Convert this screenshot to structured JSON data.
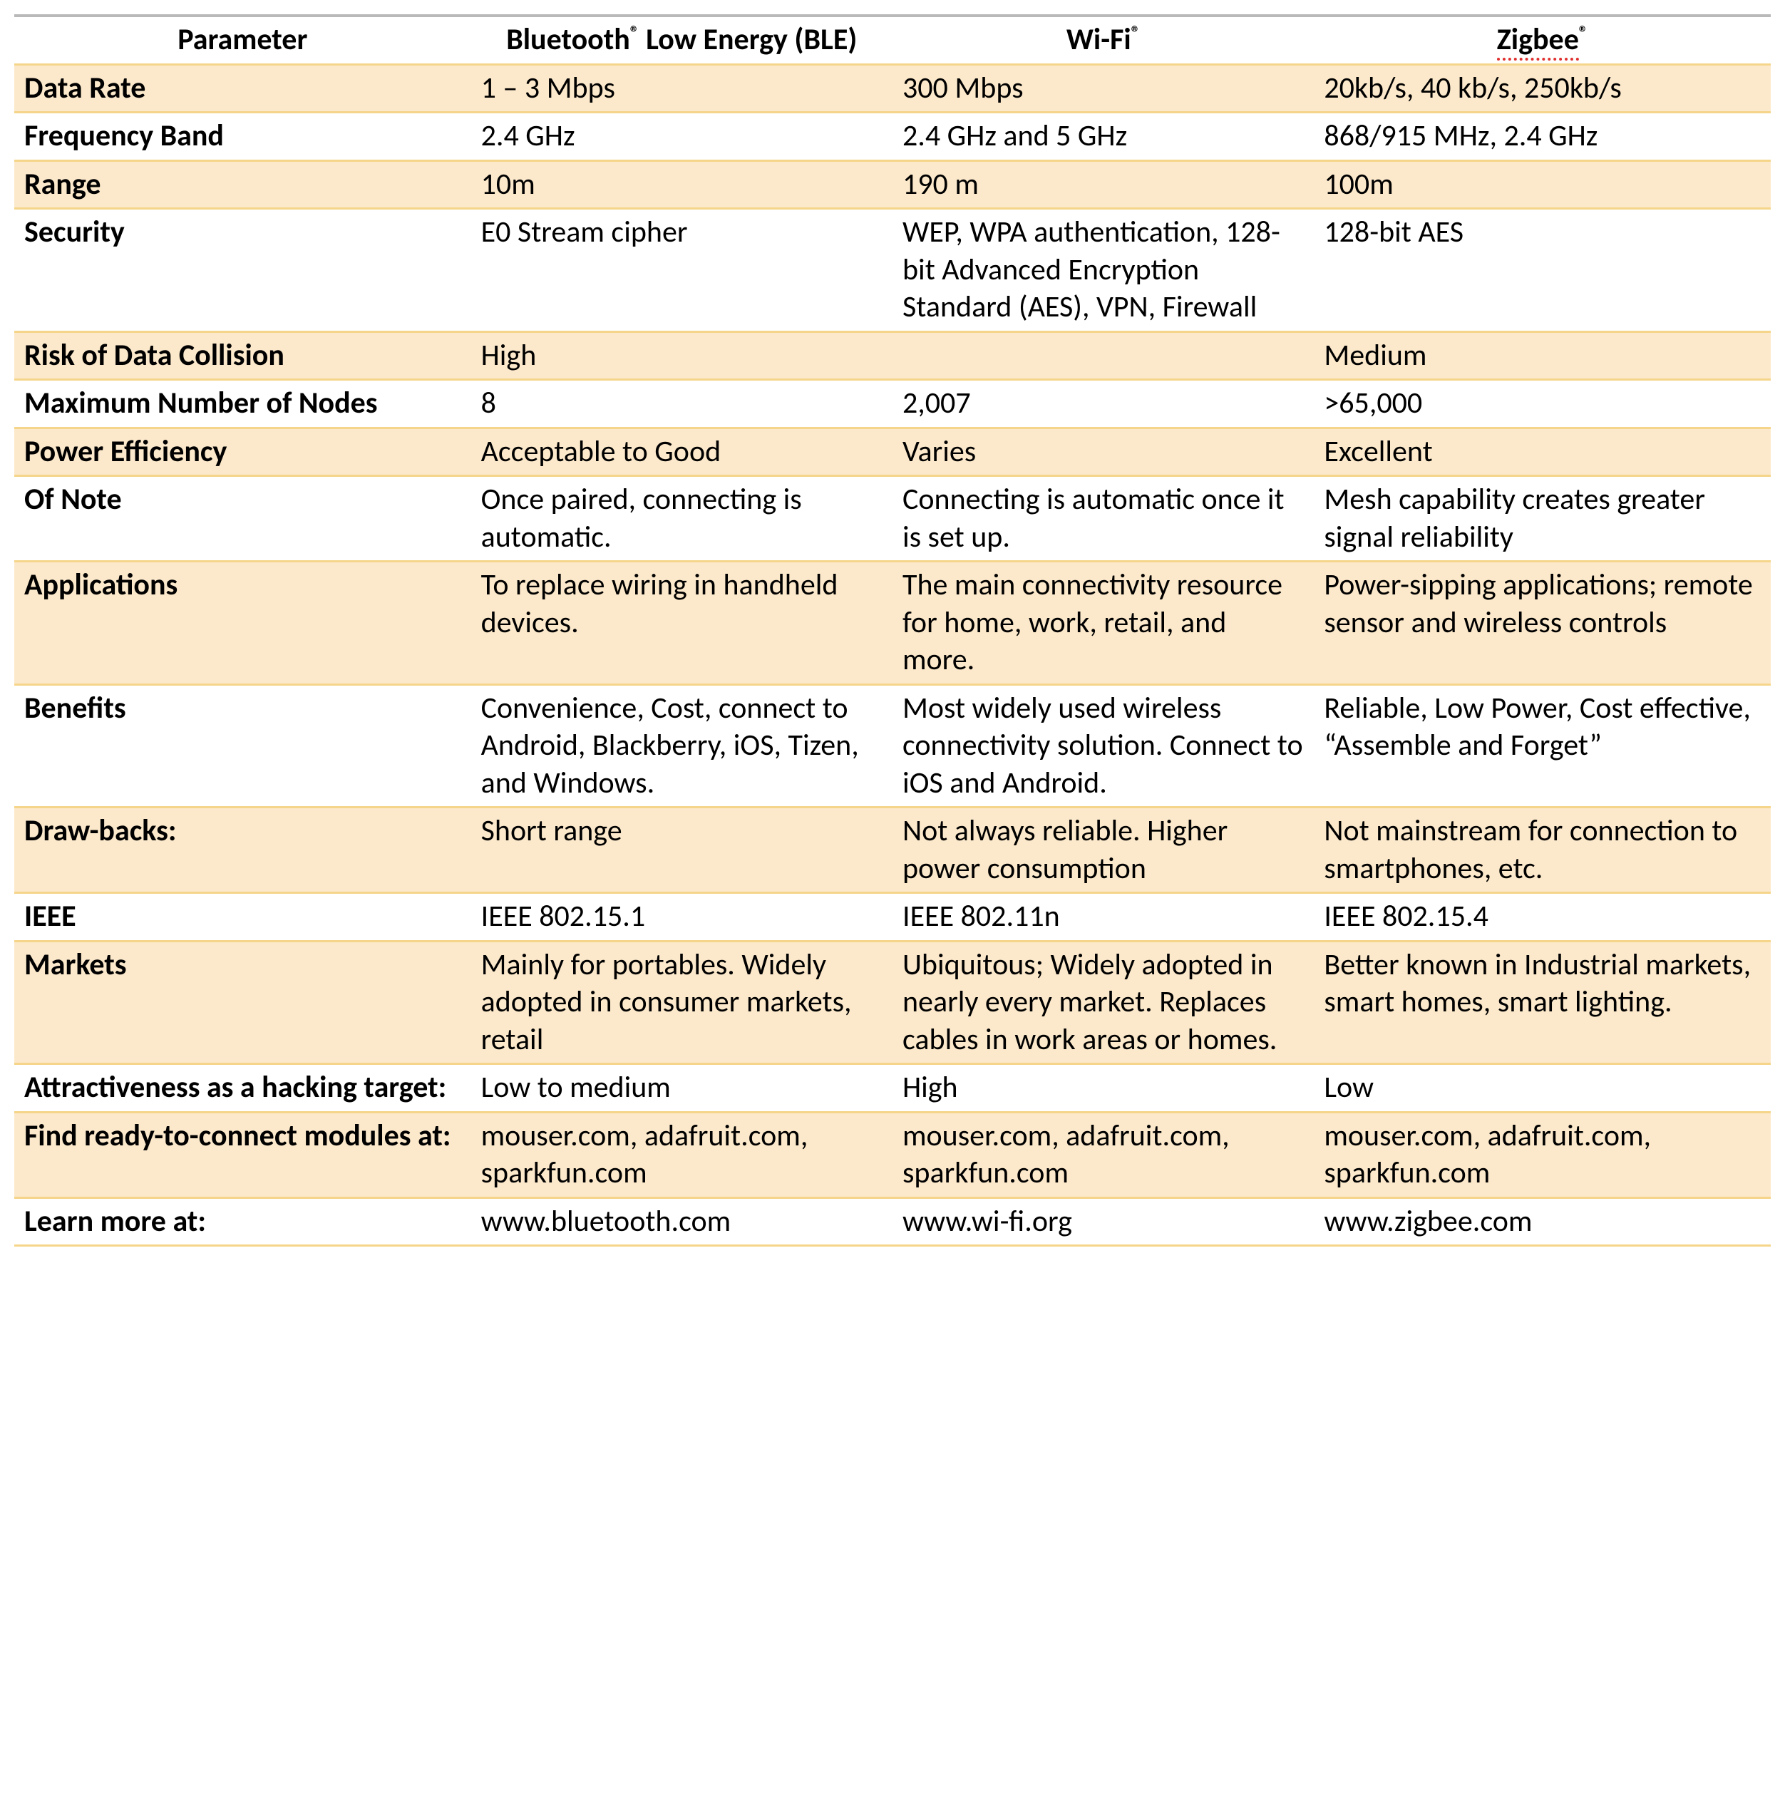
{
  "table": {
    "columns": [
      "Parameter",
      "Bluetooth® Low Energy (BLE)",
      "Wi-Fi®",
      "Zigbee®"
    ],
    "header_spellcheck": {
      "zigbee": true
    },
    "colors": {
      "shaded_bg": "#fce9cb",
      "plain_bg": "#ffffff",
      "row_border": "#f5d58a",
      "top_rule": "#b9b9b9",
      "text": "#000000",
      "spell_red": "#e03030",
      "spell_blue": "#2a5db0"
    },
    "font_size_pt": 32,
    "rows": [
      {
        "shaded": true,
        "cells": [
          "Data Rate",
          "1 – 3 Mbps",
          "300 Mbps",
          "20kb/s,  40 kb/s, 250kb/s"
        ],
        "zigbee_spell_blue": "s,  40"
      },
      {
        "shaded": false,
        "cells": [
          "Frequency Band",
          "2.4 GHz",
          "2.4 GHz and 5 GHz",
          "868/915 MHz,  2.4 GHz"
        ],
        "zigbee_spell_blue": "MHz,  2.4"
      },
      {
        "shaded": true,
        "cells": [
          "Range",
          "10m",
          "190 m",
          "100m"
        ]
      },
      {
        "shaded": false,
        "cells": [
          "Security",
          "E0 Stream cipher",
          "WEP, WPA authentication, 128-bit Advanced Encryption Standard (AES), VPN, Firewall",
          "128-bit AES"
        ]
      },
      {
        "shaded": true,
        "cells": [
          "Risk of Data Collision",
          "High",
          "",
          "Medium"
        ]
      },
      {
        "shaded": false,
        "cells": [
          "Maximum Number of Nodes",
          "8",
          "2,007",
          ">65,000"
        ]
      },
      {
        "shaded": true,
        "cells": [
          "Power Efficiency",
          "Acceptable to Good",
          "Varies",
          "Excellent"
        ]
      },
      {
        "shaded": false,
        "cells": [
          "Of Note",
          "Once paired, connecting is automatic.",
          "Connecting is automatic once it is set up.",
          "Mesh capability creates greater signal reliability"
        ]
      },
      {
        "shaded": true,
        "cells": [
          "Applications",
          "To replace wiring in handheld devices.",
          "The main connectivity resource for home, work, retail, and more.",
          "Power-sipping applications; remote sensor and wireless controls"
        ]
      },
      {
        "shaded": false,
        "cells": [
          "Benefits",
          "Convenience, Cost, connect to Android, Blackberry, iOS, Tizen, and Windows.",
          "Most widely used wireless connectivity solution. Connect to iOS and Android.",
          "Reliable, Low Power, Cost effective, \"Assemble and Forget\""
        ],
        "ble_spell_red": "Tizen,",
        "zigbee_spell_blue": "Cost"
      },
      {
        "shaded": true,
        "cells": [
          "Draw-backs:",
          "Short range",
          "Not always reliable. Higher power consumption",
          "Not mainstream for connection to smartphones, etc."
        ]
      },
      {
        "shaded": false,
        "cells": [
          "IEEE",
          "IEEE 802.15.1",
          "IEEE 802.11n",
          "IEEE 802.15.4"
        ]
      },
      {
        "shaded": true,
        "cells": [
          "Markets",
          "Mainly for portables. Widely adopted in consumer markets, retail",
          "Ubiquitous; Widely adopted in nearly every market. Replaces cables in work areas or homes.",
          "Better known in Industrial markets, smart homes, smart lighting."
        ]
      },
      {
        "shaded": false,
        "cells": [
          "Attractiveness as a hacking target:",
          "Low to medium",
          "High",
          "Low"
        ]
      },
      {
        "shaded": true,
        "cells": [
          "Find ready-to-connect modules at:",
          "mouser.com, adafruit.com, sparkfun.com",
          "mouser.com, adafruit.com, sparkfun.com",
          "mouser.com, adafruit.com, sparkfun.com"
        ]
      },
      {
        "shaded": false,
        "cells": [
          "Learn more at:",
          "www.bluetooth.com",
          "www.wi-fi.org",
          "www.zigbee.com"
        ]
      }
    ]
  }
}
